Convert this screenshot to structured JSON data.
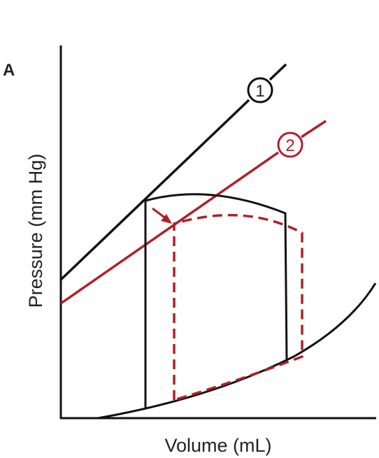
{
  "panel_label": "A",
  "axes": {
    "y_label": "Pressure (mm Hg)",
    "x_label": "Volume (mL)"
  },
  "lines": [
    {
      "label": "1"
    },
    {
      "label": "2"
    }
  ]
}
